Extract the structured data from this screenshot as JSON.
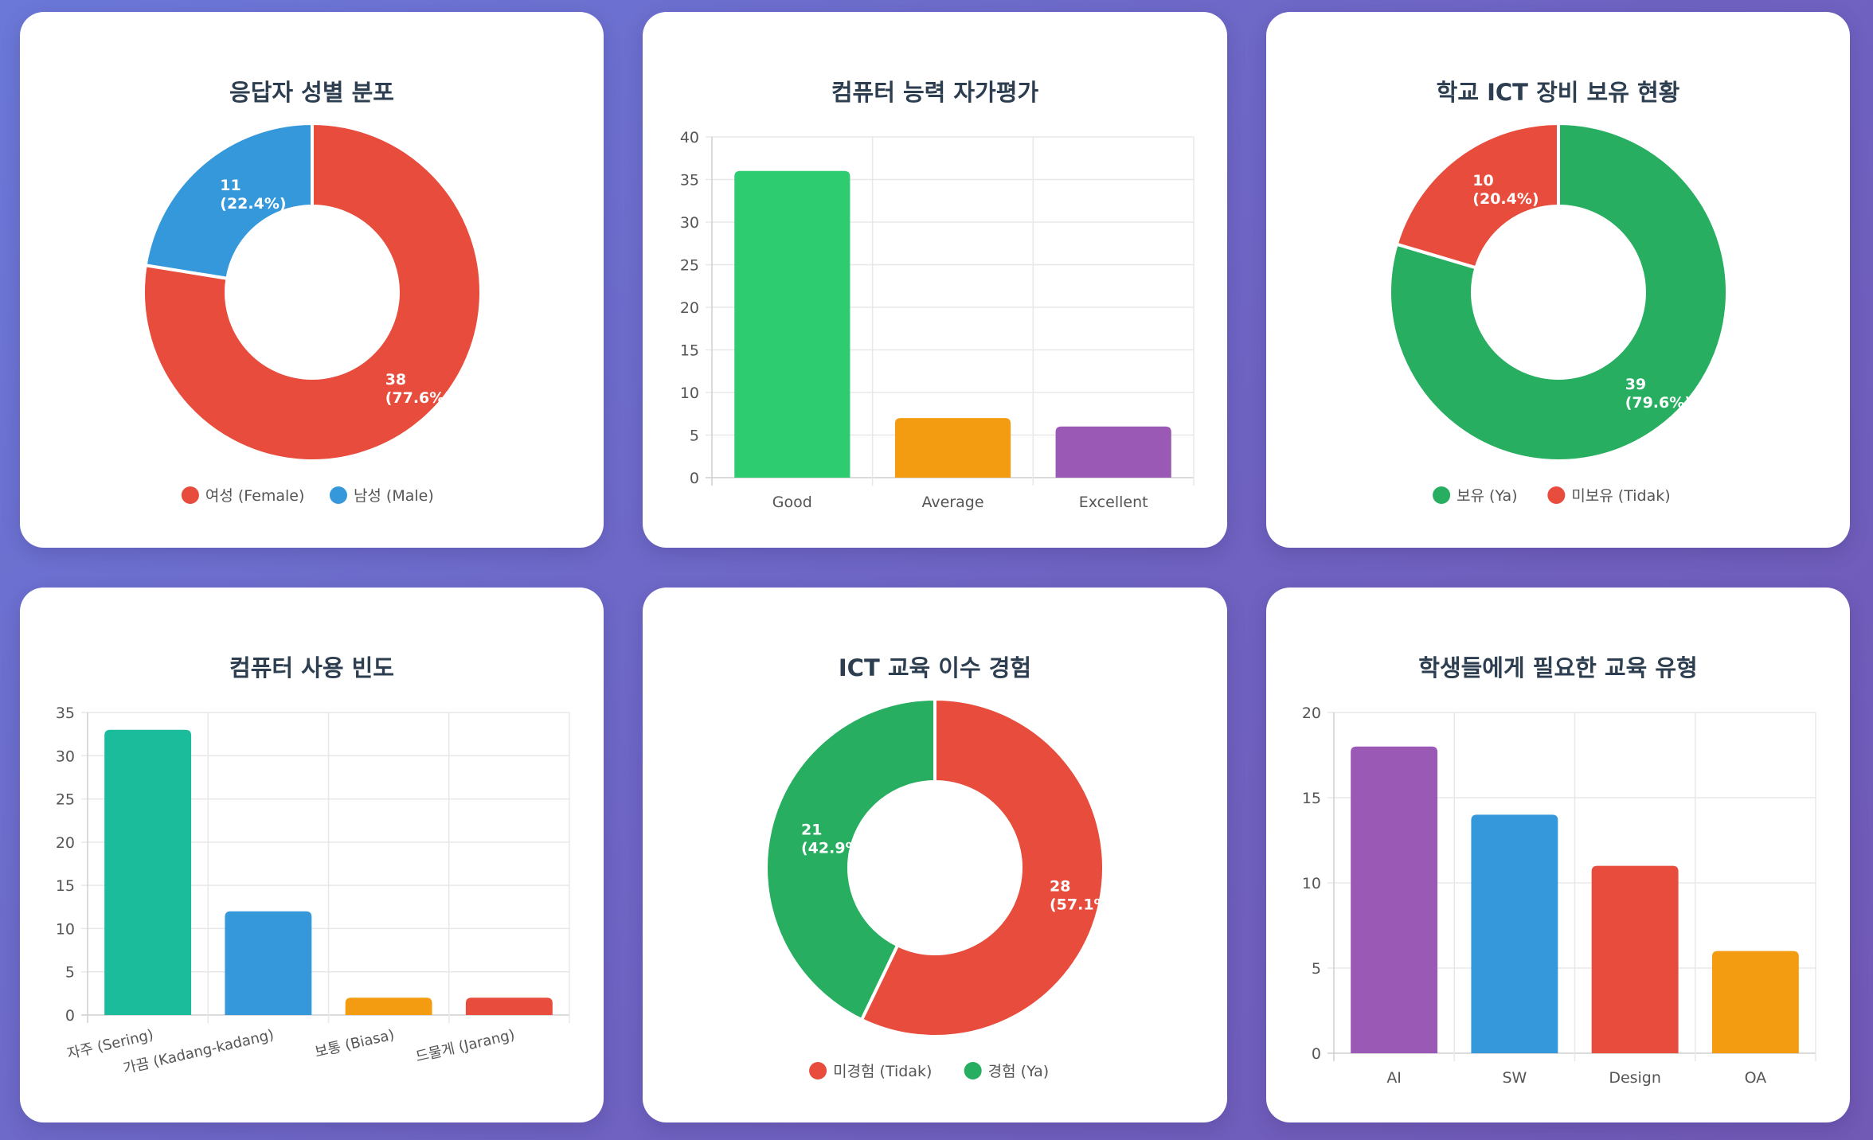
{
  "chart_data": [
    {
      "id": "c1",
      "type": "doughnut",
      "title": "응답자 성별 분포",
      "labels": [
        "여성 (Female)",
        "남성 (Male)"
      ],
      "values": [
        38,
        11
      ],
      "data_labels": [
        [
          "38",
          "(77.6%)"
        ],
        [
          "11",
          "(22.4%)"
        ]
      ],
      "colors": [
        "#e74c3c",
        "#3498db"
      ]
    },
    {
      "id": "c2",
      "type": "bar",
      "title": "컴퓨터 능력 자가평가",
      "categories": [
        "Good",
        "Average",
        "Excellent"
      ],
      "values": [
        36,
        7,
        6
      ],
      "colors": [
        "#2ecc71",
        "#f39c12",
        "#9b59b6"
      ],
      "ylim": [
        0,
        40
      ],
      "yticks": [
        "0",
        "5",
        "10",
        "15",
        "20",
        "25",
        "30",
        "35",
        "40"
      ]
    },
    {
      "id": "c3",
      "type": "doughnut",
      "title": "학교 ICT 장비 보유 현황",
      "labels": [
        "보유 (Ya)",
        "미보유 (Tidak)"
      ],
      "values": [
        39,
        10
      ],
      "data_labels": [
        [
          "39",
          "(79.6%)"
        ],
        [
          "10",
          "(20.4%)"
        ]
      ],
      "colors": [
        "#27ae60",
        "#e74c3c"
      ]
    },
    {
      "id": "c4",
      "type": "bar",
      "title": "컴퓨터 사용 빈도",
      "categories": [
        "자주 (Sering)",
        "가끔 (Kadang-kadang)",
        "보통 (Biasa)",
        "드물게 (Jarang)"
      ],
      "values": [
        33,
        12,
        2,
        2
      ],
      "colors": [
        "#1abc9c",
        "#3498db",
        "#f39c12",
        "#e74c3c"
      ],
      "ylim": [
        0,
        35
      ],
      "yticks": [
        "0",
        "5",
        "10",
        "15",
        "20",
        "25",
        "30",
        "35"
      ]
    },
    {
      "id": "c5",
      "type": "doughnut",
      "title": "ICT 교육 이수 경험",
      "labels": [
        "미경험 (Tidak)",
        "경험 (Ya)"
      ],
      "values": [
        28,
        21
      ],
      "data_labels": [
        [
          "28",
          "(57.1%)"
        ],
        [
          "21",
          "(42.9%)"
        ]
      ],
      "colors": [
        "#e74c3c",
        "#27ae60"
      ]
    },
    {
      "id": "c6",
      "type": "bar",
      "title": "학생들에게 필요한 교육 유형",
      "categories": [
        "AI",
        "SW",
        "Design",
        "OA"
      ],
      "values": [
        18,
        14,
        11,
        6
      ],
      "colors": [
        "#9b59b6",
        "#3498db",
        "#e74c3c",
        "#f39c12"
      ],
      "ylim": [
        0,
        20
      ],
      "yticks": [
        "0",
        "5",
        "10",
        "15",
        "20"
      ]
    }
  ]
}
